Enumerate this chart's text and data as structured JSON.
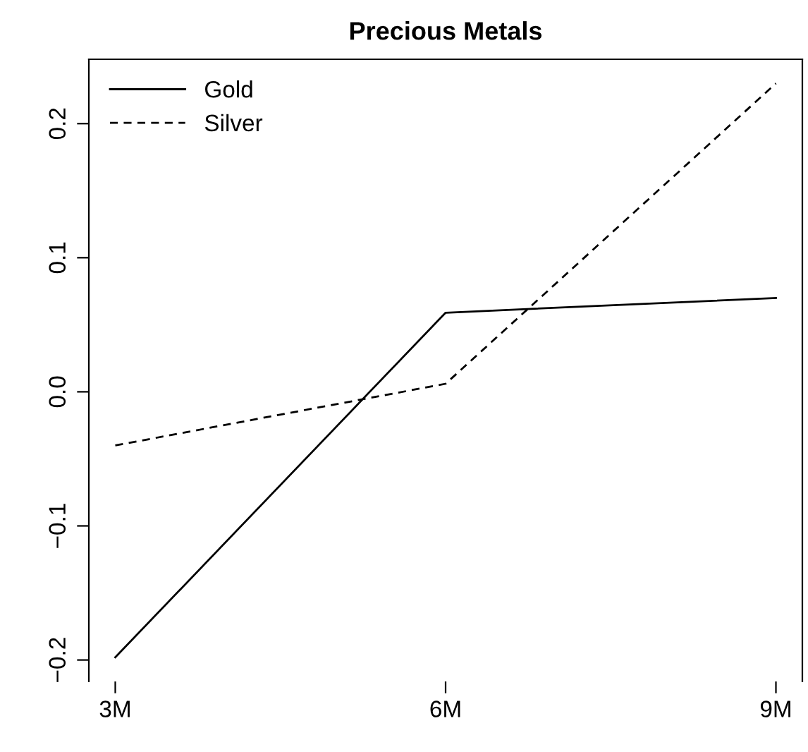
{
  "chart_data": {
    "type": "line",
    "title": "Precious Metals",
    "categories": [
      "3M",
      "6M",
      "9M"
    ],
    "series": [
      {
        "name": "Gold",
        "color": "#000000",
        "line_style": "solid",
        "values": [
          -0.198,
          0.059,
          0.07
        ]
      },
      {
        "name": "Silver",
        "color": "#000000",
        "line_style": "dashed",
        "values": [
          -0.04,
          0.006,
          0.23
        ]
      }
    ],
    "ylim": [
      -0.216,
      0.248
    ],
    "yticks": [
      {
        "value": -0.2,
        "label": "−0.2"
      },
      {
        "value": -0.1,
        "label": "−0.1"
      },
      {
        "value": 0.0,
        "label": "0.0"
      },
      {
        "value": 0.1,
        "label": "0.1"
      },
      {
        "value": 0.2,
        "label": "0.2"
      }
    ],
    "grid": false,
    "legend": "top left",
    "marker": "none"
  }
}
